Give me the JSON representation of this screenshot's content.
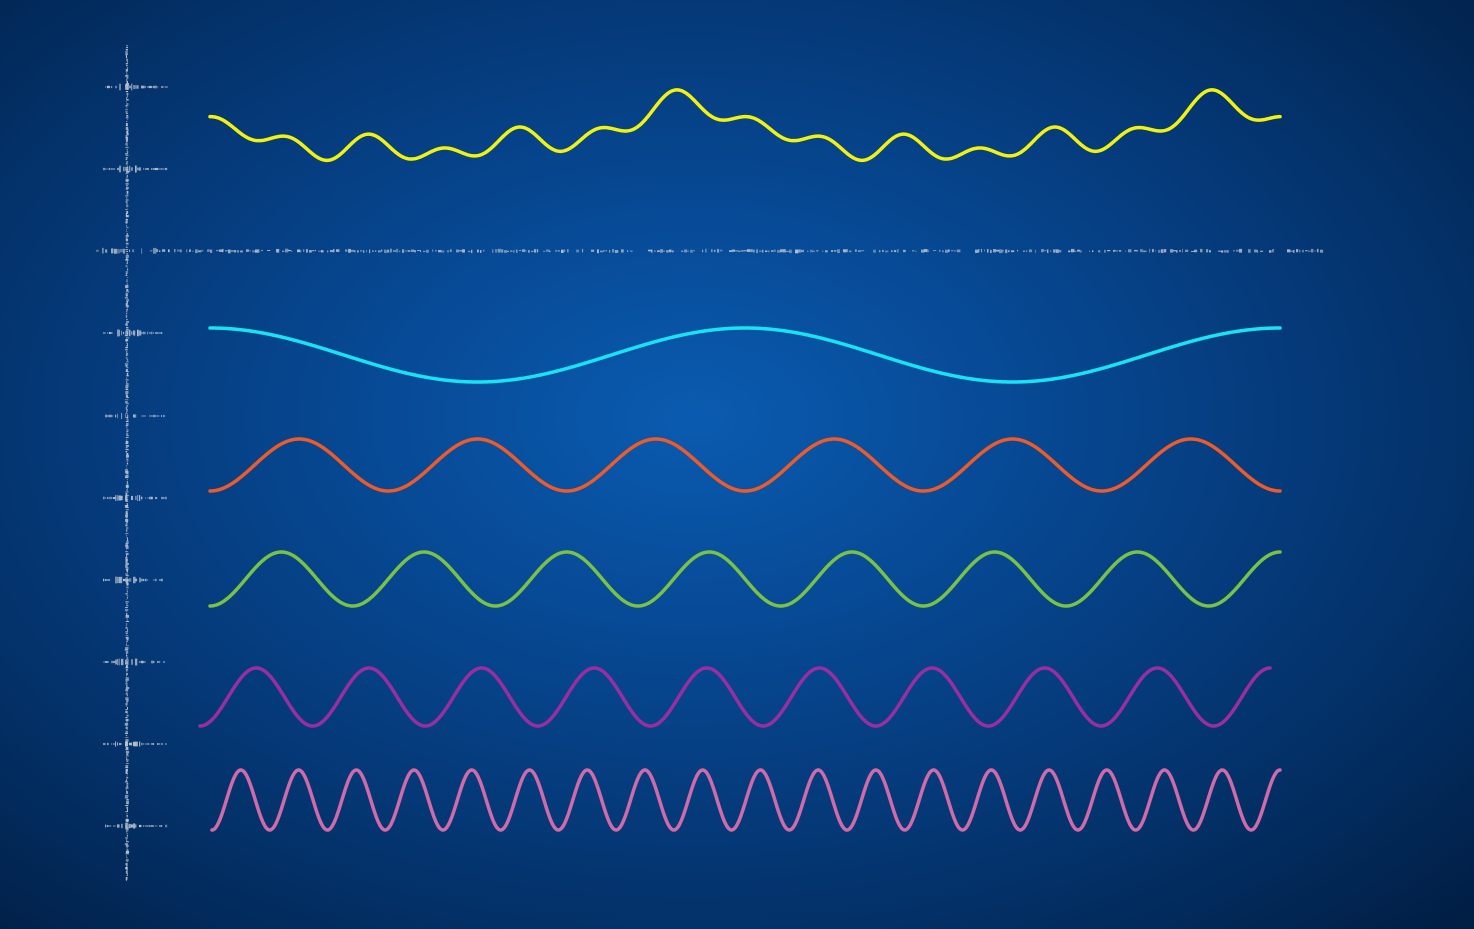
{
  "background": {
    "center_color": "#0a5bb0",
    "edge_color": "#011d42"
  },
  "axes": {
    "color": "#b9c3d0"
  },
  "waves": [
    {
      "name": "composite-wave",
      "color": "#f2f20f",
      "components": [
        {
          "amplitude": 8,
          "cycles": 8,
          "phase": 0.0
        },
        {
          "amplitude": 10,
          "cycles": 14,
          "phase": 1.2
        },
        {
          "amplitude": 12,
          "cycles": 2,
          "phase": 2.4
        },
        {
          "amplitude": 18,
          "cycles": 2,
          "phase": 0.6,
          "sharp": true
        }
      ]
    },
    {
      "name": "cyan-wave",
      "color": "#18e3f2",
      "amplitude": 27,
      "cycles": 2.0,
      "phase": 3.14159
    },
    {
      "name": "orange-wave",
      "color": "#ee5a28",
      "amplitude": 26,
      "cycles": 6.0,
      "phase": 0.0
    },
    {
      "name": "green-wave",
      "color": "#79c243",
      "amplitude": 27,
      "cycles": 7.5,
      "phase": 0.0
    },
    {
      "name": "purple-wave",
      "color": "#9a2ea0",
      "amplitude": 29,
      "cycles": 9.5,
      "phase": 0.0
    },
    {
      "name": "pink-wave",
      "color": "#d06aa9",
      "amplitude": 30,
      "cycles": 18.5,
      "phase": 0.0
    }
  ]
}
